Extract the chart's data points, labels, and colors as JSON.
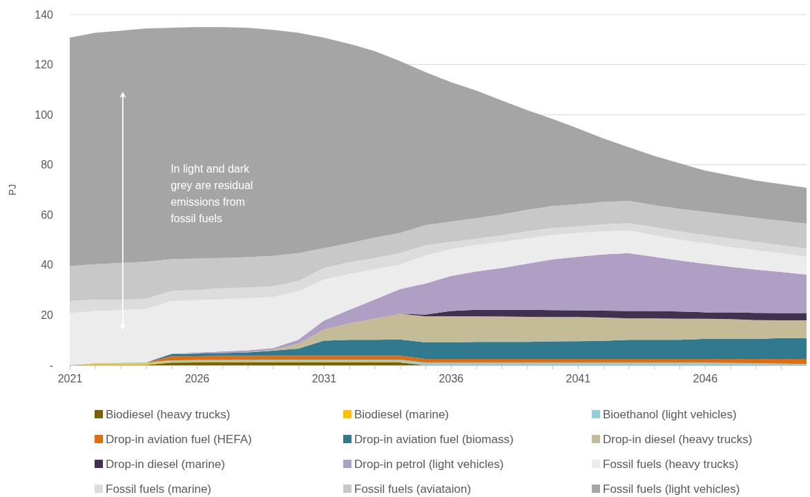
{
  "chart_data": {
    "type": "area",
    "stacked": true,
    "ylabel": "PJ",
    "x": [
      2021,
      2022,
      2023,
      2024,
      2025,
      2026,
      2027,
      2028,
      2029,
      2030,
      2031,
      2032,
      2033,
      2034,
      2035,
      2036,
      2037,
      2038,
      2039,
      2040,
      2041,
      2042,
      2043,
      2044,
      2045,
      2046,
      2047,
      2048,
      2049,
      2050
    ],
    "xlim": [
      2021,
      2050
    ],
    "xticks": [
      2021,
      {
        "value": 2022,
        "label": null
      },
      {
        "value": 2023,
        "label": null
      },
      {
        "value": 2024,
        "label": null
      },
      {
        "value": 2025,
        "label": null
      },
      2026,
      {
        "value": 2027,
        "label": null
      },
      {
        "value": 2028,
        "label": null
      },
      {
        "value": 2029,
        "label": null
      },
      {
        "value": 2030,
        "label": null
      },
      2031,
      {
        "value": 2032,
        "label": null
      },
      {
        "value": 2033,
        "label": null
      },
      {
        "value": 2034,
        "label": null
      },
      {
        "value": 2035,
        "label": null
      },
      2036,
      {
        "value": 2037,
        "label": null
      },
      {
        "value": 2038,
        "label": null
      },
      {
        "value": 2039,
        "label": null
      },
      {
        "value": 2040,
        "label": null
      },
      2041,
      {
        "value": 2042,
        "label": null
      },
      {
        "value": 2043,
        "label": null
      },
      {
        "value": 2044,
        "label": null
      },
      {
        "value": 2045,
        "label": null
      },
      2046,
      {
        "value": 2047,
        "label": null
      },
      {
        "value": 2048,
        "label": null
      },
      {
        "value": 2049,
        "label": null
      }
    ],
    "ylim": [
      0,
      140
    ],
    "yticks": [
      {
        "value": 0,
        "label": "-"
      },
      20,
      40,
      60,
      80,
      100,
      120,
      140
    ],
    "grid": "y",
    "legend": "bottom",
    "annotations": [
      "In light and dark grey are residual emissions from fossil fuels"
    ],
    "series": [
      {
        "name": "Biodiesel (heavy trucks)",
        "color": "#7f6000",
        "values": [
          0,
          0.1,
          0.1,
          0.1,
          1.0,
          1.1,
          1.1,
          1.1,
          1.1,
          1.1,
          1.1,
          1.1,
          1.1,
          1.1,
          0,
          0,
          0,
          0,
          0,
          0,
          0,
          0,
          0,
          0,
          0,
          0,
          0,
          0,
          0,
          0
        ]
      },
      {
        "name": "Biodiesel (marine)",
        "color": "#ffc000",
        "values": [
          0,
          0.5,
          0.6,
          0.6,
          0.3,
          0.3,
          0.3,
          0.3,
          0.3,
          0.3,
          0.3,
          0.3,
          0.3,
          0.3,
          0,
          0,
          0,
          0,
          0,
          0,
          0,
          0,
          0,
          0,
          0,
          0,
          0,
          0,
          0,
          0
        ]
      },
      {
        "name": "Bioethanol (light vehicles)",
        "color": "#92cddc",
        "values": [
          0,
          0.2,
          0.3,
          0.4,
          0.6,
          0.7,
          0.7,
          0.8,
          0.8,
          0.8,
          0.8,
          0.8,
          0.8,
          0.8,
          1.0,
          1.0,
          1.0,
          1.0,
          1.0,
          1.0,
          1.0,
          1.0,
          1.0,
          1.0,
          1.0,
          1.0,
          0.9,
          0.8,
          0.6,
          0.5
        ]
      },
      {
        "name": "Drop-in aviation fuel (HEFA)",
        "color": "#e46c0a",
        "values": [
          0,
          0,
          0,
          0,
          1.6,
          1.5,
          1.6,
          1.5,
          1.6,
          1.6,
          1.6,
          1.6,
          1.6,
          1.6,
          1.5,
          1.5,
          1.5,
          1.5,
          1.5,
          1.5,
          1.5,
          1.5,
          1.5,
          1.5,
          1.5,
          1.5,
          1.6,
          1.7,
          1.9,
          2.0
        ]
      },
      {
        "name": "Drop-in aviation fuel (biomass)",
        "color": "#31798e",
        "values": [
          0,
          0,
          0,
          0,
          0.9,
          1.0,
          1.1,
          1.4,
          2.0,
          2.8,
          6.0,
          6.3,
          6.3,
          6.5,
          6.6,
          6.6,
          6.8,
          6.8,
          6.8,
          7.0,
          7.1,
          7.2,
          7.6,
          7.6,
          7.6,
          8.0,
          8.0,
          8.0,
          8.3,
          8.3
        ]
      },
      {
        "name": "Drop-in diesel (heavy trucks)",
        "color": "#c4bc97",
        "values": [
          0,
          0,
          0,
          0,
          0,
          0,
          0,
          0,
          0.3,
          1.9,
          4.3,
          6.6,
          8.4,
          10.2,
          10.4,
          10.4,
          10.2,
          10.1,
          10.0,
          9.7,
          9.6,
          9.3,
          8.6,
          8.6,
          8.4,
          8.0,
          7.9,
          7.5,
          7.1,
          7.1
        ]
      },
      {
        "name": "Drop-in diesel (marine)",
        "color": "#403151",
        "values": [
          0,
          0,
          0,
          0,
          0,
          0,
          0,
          0,
          0,
          0,
          0,
          0,
          0,
          0.1,
          0.7,
          2.1,
          2.6,
          2.7,
          2.8,
          2.8,
          2.7,
          2.8,
          2.9,
          2.9,
          2.9,
          2.6,
          2.7,
          2.9,
          2.9,
          2.9
        ]
      },
      {
        "name": "Drop-in petrol (light vehicles)",
        "color": "#b09fc5",
        "values": [
          0,
          0,
          0,
          0,
          0.2,
          0.4,
          0.7,
          0.8,
          0.7,
          1.7,
          3.7,
          5.4,
          7.7,
          9.8,
          12.4,
          14.0,
          15.3,
          16.7,
          18.4,
          20.2,
          21.4,
          22.4,
          23.1,
          21.7,
          20.4,
          19.4,
          18.2,
          17.3,
          16.4,
          15.4
        ]
      },
      {
        "name": "Fossil fuels (heavy trucks)",
        "color": "#ececec",
        "values": [
          20.8,
          20.8,
          20.9,
          21.3,
          21.0,
          21.0,
          20.8,
          20.8,
          20.4,
          19.3,
          16.4,
          14.3,
          12.1,
          9.7,
          11.2,
          10.6,
          10.6,
          10.4,
          10.1,
          9.8,
          9.5,
          9.2,
          9.1,
          8.6,
          8.3,
          8.2,
          7.9,
          7.7,
          7.5,
          7.1
        ]
      },
      {
        "name": "Fossil fuels (marine)",
        "color": "#dcdcdc",
        "values": [
          4.8,
          4.5,
          4.2,
          4.1,
          4.1,
          4.0,
          4.4,
          4.3,
          4.3,
          4.1,
          4.6,
          4.7,
          4.5,
          4.6,
          4.1,
          3.0,
          2.4,
          2.6,
          2.8,
          2.8,
          2.6,
          2.8,
          2.9,
          3.2,
          3.3,
          3.2,
          3.4,
          3.3,
          3.2,
          3.3
        ]
      },
      {
        "name": "Fossil fuels (aviataion)",
        "color": "#c8c8c8",
        "values": [
          14.0,
          14.2,
          14.7,
          14.8,
          12.6,
          12.6,
          12.1,
          12.1,
          12.1,
          11.1,
          7.9,
          7.6,
          8.1,
          8.1,
          8.0,
          8.1,
          8.3,
          8.4,
          8.6,
          8.7,
          8.9,
          9.0,
          8.9,
          8.8,
          9.0,
          9.3,
          9.4,
          9.6,
          9.8,
          9.9
        ]
      },
      {
        "name": "Fossil fuels (light vehicles)",
        "color": "#a5a5a5",
        "values": [
          91.2,
          92.4,
          92.7,
          93.1,
          92.4,
          92.4,
          92.2,
          91.6,
          90.3,
          88.0,
          84.1,
          79.6,
          74.5,
          68.6,
          61.1,
          55.7,
          50.9,
          45.5,
          39.8,
          34.8,
          30.2,
          25.3,
          21.4,
          19.7,
          18.2,
          16.5,
          15.7,
          14.9,
          14.6,
          14.3
        ]
      }
    ]
  }
}
